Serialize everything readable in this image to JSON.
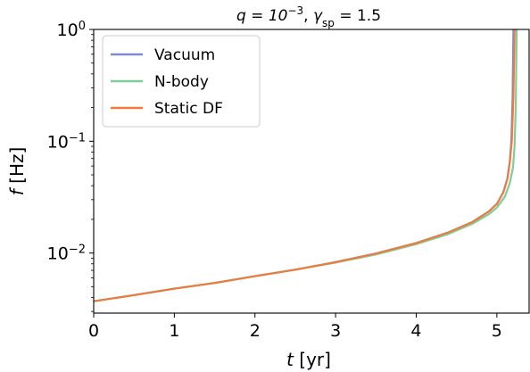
{
  "chart_data": {
    "type": "line",
    "title": "q = 10^{-3}, γ_sp = 1.5",
    "title_parts": {
      "q_base": "q = 10",
      "q_exp": "−3",
      "gamma": "γ",
      "gamma_sub": "sp",
      "gamma_val": " = 1.5",
      "sep": ", "
    },
    "xlabel": "t [yr]",
    "xlabel_parts": {
      "var": "t",
      "unit": " [yr]"
    },
    "ylabel": "f [Hz]",
    "ylabel_parts": {
      "var": "f",
      "unit": " [Hz]"
    },
    "xlim": [
      0,
      5.4
    ],
    "ylim": [
      0.0029,
      1.0
    ],
    "yscale": "log",
    "grid": false,
    "legend_position": "upper-left",
    "x_ticks": [
      0,
      1,
      2,
      3,
      4,
      5
    ],
    "y_ticks": [
      {
        "value": 0.01,
        "base": "10",
        "exp": "−2"
      },
      {
        "value": 0.1,
        "base": "10",
        "exp": "−1"
      },
      {
        "value": 1.0,
        "base": "10",
        "exp": "0"
      }
    ],
    "series": [
      {
        "name": "Vacuum",
        "color": "#7b8bd6",
        "x": [
          0,
          0.5,
          1,
          1.5,
          2,
          2.5,
          3,
          3.5,
          4,
          4.4,
          4.7,
          4.9,
          5.0,
          5.08,
          5.13,
          5.16,
          5.18,
          5.195,
          5.205
        ],
        "y": [
          0.0037,
          0.0042,
          0.0048,
          0.0054,
          0.0062,
          0.0071,
          0.0083,
          0.0099,
          0.0123,
          0.0153,
          0.019,
          0.0235,
          0.0275,
          0.035,
          0.046,
          0.065,
          0.1,
          0.25,
          1.0
        ]
      },
      {
        "name": "N-body",
        "color": "#7fcc9c",
        "x": [
          0,
          0.5,
          1,
          1.5,
          2,
          2.5,
          3,
          3.5,
          4,
          4.4,
          4.7,
          4.9,
          5.0,
          5.1,
          5.16,
          5.2,
          5.22,
          5.235,
          5.245
        ],
        "y": [
          0.0037,
          0.0042,
          0.0048,
          0.0054,
          0.0062,
          0.0071,
          0.0082,
          0.0097,
          0.012,
          0.0148,
          0.0183,
          0.0222,
          0.0255,
          0.032,
          0.042,
          0.058,
          0.09,
          0.22,
          1.0
        ]
      },
      {
        "name": "Static DF",
        "color": "#ec7b3c",
        "x": [
          0,
          0.5,
          1,
          1.5,
          2,
          2.5,
          3,
          3.5,
          4,
          4.4,
          4.7,
          4.9,
          5.0,
          5.08,
          5.13,
          5.16,
          5.185,
          5.205,
          5.22
        ],
        "y": [
          0.0037,
          0.0042,
          0.0048,
          0.0054,
          0.0062,
          0.0071,
          0.0083,
          0.0099,
          0.0123,
          0.0153,
          0.019,
          0.0235,
          0.0275,
          0.035,
          0.046,
          0.065,
          0.1,
          0.25,
          1.0
        ]
      }
    ]
  }
}
